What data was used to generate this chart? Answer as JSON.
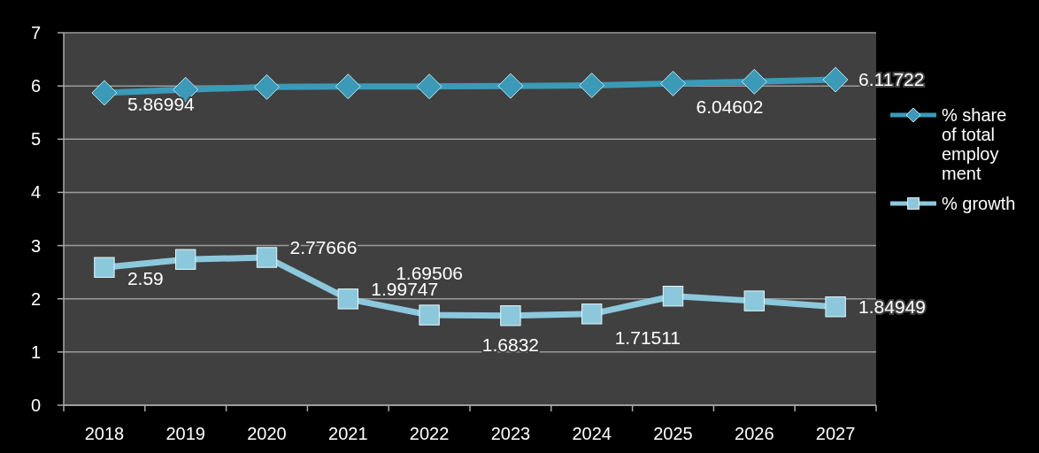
{
  "chart_data": {
    "type": "line",
    "categories": [
      "2018",
      "2019",
      "2020",
      "2021",
      "2022",
      "2023",
      "2024",
      "2025",
      "2026",
      "2027"
    ],
    "series": [
      {
        "name": "% share of total employment",
        "color": "#3a9ab8",
        "marker": "diamond",
        "values": [
          5.86994,
          5.93,
          5.98,
          5.99,
          5.99,
          6.0,
          6.01,
          6.04602,
          6.08,
          6.11722
        ],
        "value_labels": [
          "5.86994",
          null,
          null,
          null,
          null,
          null,
          null,
          "6.04602",
          null,
          "6.11722"
        ]
      },
      {
        "name": "% growth",
        "color": "#8cc8dc",
        "marker": "square",
        "values": [
          2.59,
          2.74,
          2.77666,
          1.99747,
          1.69506,
          1.6832,
          1.71511,
          2.05,
          1.96,
          1.84949
        ],
        "value_labels": [
          "2.59",
          null,
          "2.77666",
          "1.99747",
          "1.69506",
          "1.6832",
          "1.71511",
          null,
          null,
          "1.84949"
        ]
      }
    ],
    "ylim": [
      0,
      7
    ],
    "yticks": [
      0,
      1,
      2,
      3,
      4,
      5,
      6,
      7
    ],
    "grid": "y",
    "legend": "right"
  }
}
